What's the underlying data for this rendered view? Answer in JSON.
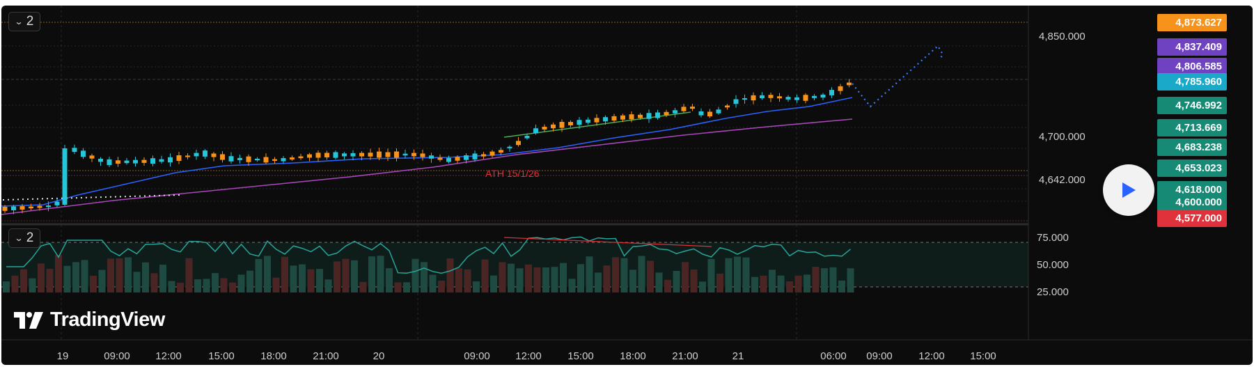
{
  "panes": {
    "main_collapse": {
      "icon": "chevron-down-icon",
      "count": "2"
    },
    "indicator_collapse": {
      "icon": "chevron-down-icon",
      "count": "2"
    }
  },
  "annotation": {
    "text": "ATH 15/1/26",
    "color": "#e0323a"
  },
  "brand": {
    "name": "TradingView",
    "icon": "tradingview-logo-icon"
  },
  "play_button": {
    "icon": "play-icon",
    "color": "#2962ff"
  },
  "price_tags": [
    {
      "label": "4,873.627",
      "color": "#f7931a"
    },
    {
      "label": "4,837.409",
      "color": "#6f42c1"
    },
    {
      "label": "4,806.585",
      "color": "#6f42c1"
    },
    {
      "label": "4,785.960",
      "color": "#1aa9c8"
    },
    {
      "label": "4,746.992",
      "color": "#168a74"
    },
    {
      "label": "4,713.669",
      "color": "#168a74"
    },
    {
      "label": "4,683.238",
      "color": "#168a74"
    },
    {
      "label": "4,653.023",
      "color": "#168a74"
    },
    {
      "label": "4,618.000",
      "color": "#168a74"
    },
    {
      "label": "4,600.000",
      "color": "#168a74"
    },
    {
      "label": "4,577.000",
      "color": "#e0323a"
    }
  ],
  "price_axis_hidden_labels": [
    "4,850.000",
    "4,700.000",
    "4,642.000"
  ],
  "oscillator_axis": [
    "75.000",
    "50.000",
    "25.000"
  ],
  "time_axis": [
    "19",
    "09:00",
    "12:00",
    "15:00",
    "18:00",
    "21:00",
    "20",
    "09:00",
    "12:00",
    "15:00",
    "18:00",
    "21:00",
    "21",
    "06:00",
    "09:00",
    "12:00",
    "15:00"
  ],
  "colors": {
    "up": "#26c6da",
    "down": "#f7931a",
    "ma_fast": "#2962ff",
    "ma_slow": "#ab47bc",
    "oscillator": "#26a69a",
    "trendline": "#4caf50",
    "divergence": "#e0323a"
  }
}
